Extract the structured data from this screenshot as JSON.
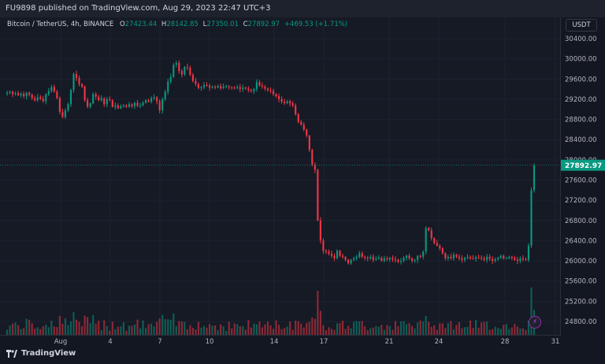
{
  "header": {
    "published_text": "FU9898 published on TradingView.com, Aug 29, 2023 22:47 UTC+3"
  },
  "legend": {
    "symbol": "Bitcoin / TetherUS, 4h, BINANCE",
    "open_label": "O",
    "open": "27423.44",
    "high_label": "H",
    "high": "28142.85",
    "low_label": "L",
    "low": "27350.01",
    "close_label": "C",
    "close": "27892.97",
    "change": "+469.53 (+1.71%)"
  },
  "price_axis": {
    "currency": "USDT",
    "ticks": [
      "30400.00",
      "30000.00",
      "29600.00",
      "29200.00",
      "28800.00",
      "28400.00",
      "28000.00",
      "27600.00",
      "27200.00",
      "26800.00",
      "26400.00",
      "26000.00",
      "25600.00",
      "25200.00",
      "24800.00"
    ],
    "last_price_label": "27892.97"
  },
  "time_axis": {
    "ticks": [
      "Aug",
      "4",
      "7",
      "10",
      "14",
      "17",
      "21",
      "24",
      "28",
      "31"
    ]
  },
  "footer": {
    "brand": "TradingView"
  },
  "colors": {
    "up": "#089981",
    "down": "#f23645",
    "background": "#131722",
    "last_price_bg": "#089981"
  },
  "icons": {
    "lightning": "lightning-icon",
    "logo": "tradingview-logo-icon"
  },
  "chart_data": {
    "type": "candlestick",
    "symbol": "Bitcoin / TetherUS",
    "interval": "4h",
    "exchange": "BINANCE",
    "ylim": [
      24700,
      30500
    ],
    "last_price": 27892.97,
    "x_ticks": [
      "Aug",
      "4",
      "7",
      "10",
      "14",
      "17",
      "21",
      "24",
      "28",
      "31"
    ],
    "closes_approx": [
      29330,
      29350,
      29300,
      29320,
      29280,
      29310,
      29260,
      29330,
      29290,
      29220,
      29180,
      29240,
      29210,
      29160,
      29300,
      29360,
      29440,
      29350,
      29220,
      28950,
      28850,
      28980,
      29100,
      29380,
      29700,
      29620,
      29500,
      29450,
      29180,
      29050,
      29120,
      29300,
      29250,
      29180,
      29220,
      29100,
      29200,
      29180,
      29050,
      29080,
      29020,
      29060,
      29080,
      29050,
      29100,
      29060,
      29130,
      29070,
      29080,
      29130,
      29180,
      29150,
      29220,
      29240,
      29160,
      28980,
      29200,
      29350,
      29550,
      29640,
      29880,
      29920,
      29760,
      29690,
      29840,
      29820,
      29680,
      29560,
      29500,
      29420,
      29440,
      29480,
      29470,
      29430,
      29450,
      29430,
      29460,
      29420,
      29450,
      29460,
      29440,
      29430,
      29420,
      29440,
      29400,
      29430,
      29410,
      29380,
      29360,
      29400,
      29540,
      29470,
      29450,
      29410,
      29380,
      29360,
      29300,
      29260,
      29200,
      29150,
      29120,
      29160,
      29120,
      29080,
      28900,
      28750,
      28700,
      28600,
      28480,
      28200,
      27900,
      27800,
      26800,
      26400,
      26200,
      26180,
      26140,
      26100,
      26050,
      26200,
      26100,
      26080,
      26020,
      25950,
      26020,
      26050,
      26080,
      26150,
      26080,
      26060,
      26050,
      26080,
      26020,
      26040,
      26060,
      26000,
      26050,
      26030,
      26060,
      26030,
      26020,
      25980,
      26000,
      26060,
      26100,
      26050,
      26000,
      26020,
      26100,
      26080,
      26180,
      26650,
      26600,
      26450,
      26350,
      26300,
      26250,
      26150,
      26050,
      26080,
      26050,
      26120,
      26080,
      26050,
      26020,
      26060,
      26080,
      26050,
      26040,
      26070,
      26060,
      26050,
      26020,
      26080,
      26040,
      26000,
      26030,
      26060,
      26100,
      26050,
      26050,
      26080,
      26060,
      26020,
      26000,
      26050,
      26030,
      26020,
      26300,
      27400,
      27892.97
    ]
  }
}
